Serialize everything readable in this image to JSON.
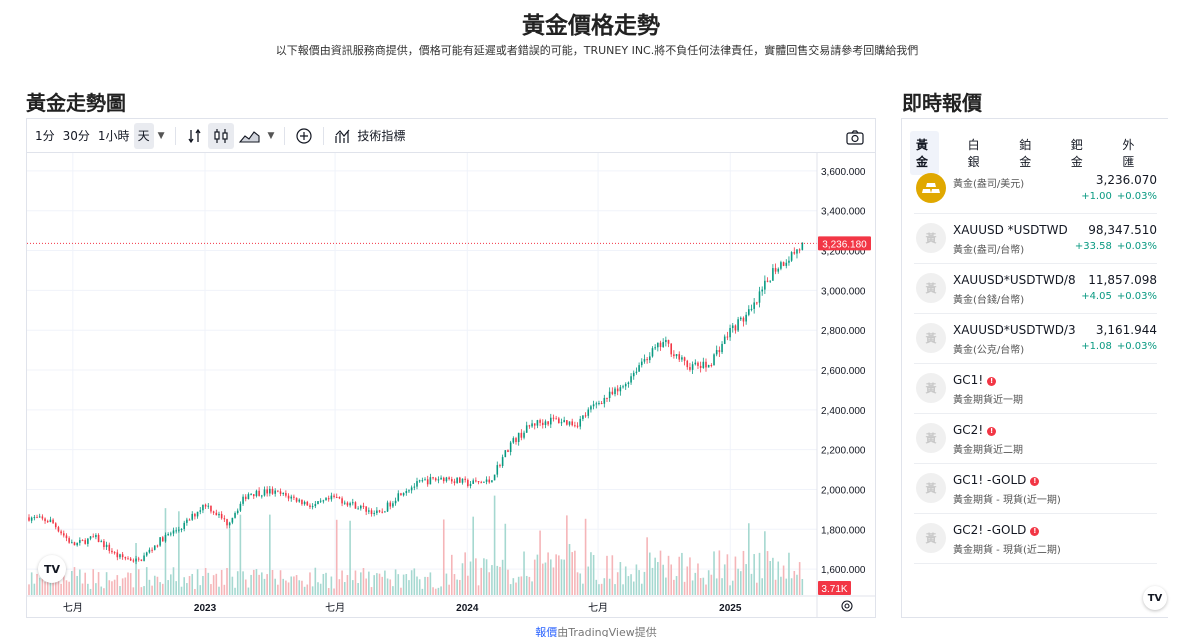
{
  "page": {
    "title": "黃金價格走勢",
    "subtitle": "以下報價由資訊服務商提供，價格可能有延遲或者錯誤的可能，TRUNEY INC.將不負任何法律責任，實體回售交易請參考回購給我們"
  },
  "chart_section": {
    "title": "黃金走勢圖",
    "toolbar": {
      "intervals": [
        "1分",
        "30分",
        "1小時",
        "天"
      ],
      "active_interval": "天",
      "indicators_label": "技術指標"
    }
  },
  "quote_section": {
    "title": "即時報價",
    "tabs": [
      "黃金",
      "白銀",
      "鉑金",
      "鈀金",
      "外匯"
    ],
    "active_tab": "黃金",
    "rows": [
      {
        "symbol": "",
        "desc": "黃金(盎司/美元)",
        "price": "3,236.070",
        "change": "+1.00",
        "change_pct": "+0.03%",
        "icon": "gold-bar-icon"
      },
      {
        "symbol": "XAUUSD *USDTWD",
        "desc": "黃金(盎司/台幣)",
        "price": "98,347.510",
        "change": "+33.58",
        "change_pct": "+0.03%",
        "icon": "gold-kanji-icon"
      },
      {
        "symbol": "XAUUSD*USDTWD/8",
        "desc": "黃金(台錢/台幣)",
        "price": "11,857.098",
        "change": "+4.05",
        "change_pct": "+0.03%",
        "icon": "gold-kanji-icon"
      },
      {
        "symbol": "XAUUSD*USDTWD/3",
        "desc": "黃金(公克/台幣)",
        "price": "3,161.944",
        "change": "+1.08",
        "change_pct": "+0.03%",
        "icon": "gold-kanji-icon"
      },
      {
        "symbol": "GC1!",
        "desc": "黃金期貨近一期",
        "price": "",
        "change": "",
        "change_pct": "",
        "icon": "gold-kanji-icon",
        "alert": true
      },
      {
        "symbol": "GC2!",
        "desc": "黃金期貨近二期",
        "price": "",
        "change": "",
        "change_pct": "",
        "icon": "gold-kanji-icon",
        "alert": true
      },
      {
        "symbol": "GC1! -GOLD",
        "desc": "黃金期貨 - 現貨(近一期)",
        "price": "",
        "change": "",
        "change_pct": "",
        "icon": "gold-kanji-icon",
        "alert": true
      },
      {
        "symbol": "GC2! -GOLD",
        "desc": "黃金期貨 - 現貨(近二期)",
        "price": "",
        "change": "",
        "change_pct": "",
        "icon": "gold-kanji-icon",
        "alert": true
      }
    ]
  },
  "icon_glyph": "黃",
  "alert_glyph": "!",
  "tradingview_logo": "TV",
  "credit": {
    "link_text": "報價",
    "text": "由TradingView提供"
  },
  "colors": {
    "up": "#089981",
    "down": "#f23645",
    "accent": "#2962ff",
    "gold": "#e0a800"
  },
  "chart_data": {
    "type": "candlestick",
    "title": "",
    "x_tick_labels": [
      "七月",
      "2023",
      "七月",
      "2024",
      "七月",
      "2025"
    ],
    "y_tick_labels": [
      "3,600.000",
      "3,400.000",
      "3,200.000",
      "3,000.000",
      "2,800.000",
      "2,600.000",
      "2,400.000",
      "2,200.000",
      "2,000.000",
      "1,800.000",
      "1,600.000"
    ],
    "y_ticks": [
      3600,
      3400,
      3200,
      3000,
      2800,
      2600,
      2400,
      2200,
      2000,
      1800,
      1600
    ],
    "ylim": [
      1470,
      3690
    ],
    "grid": true,
    "last_price": 3236.18,
    "last_price_label": "3,236.180",
    "volume_label": "3.71K",
    "price_path_months": [
      "2022-05",
      "2022-06",
      "2022-07",
      "2022-08",
      "2022-09",
      "2022-10",
      "2022-11",
      "2022-12",
      "2023-01",
      "2023-02",
      "2023-03",
      "2023-04",
      "2023-05",
      "2023-06",
      "2023-07",
      "2023-08",
      "2023-09",
      "2023-10",
      "2023-11",
      "2023-12",
      "2024-01",
      "2024-02",
      "2024-03",
      "2024-04",
      "2024-05",
      "2024-06",
      "2024-07",
      "2024-08",
      "2024-09",
      "2024-10",
      "2024-11",
      "2024-12",
      "2025-01",
      "2025-02",
      "2025-03",
      "2025-04"
    ],
    "price_path_values": [
      1860,
      1840,
      1720,
      1760,
      1665,
      1640,
      1750,
      1815,
      1930,
      1830,
      1980,
      1990,
      1960,
      1915,
      1960,
      1915,
      1875,
      1990,
      2040,
      2060,
      2030,
      2040,
      2230,
      2330,
      2350,
      2330,
      2440,
      2500,
      2650,
      2740,
      2620,
      2620,
      2800,
      2900,
      3100,
      3236
    ]
  }
}
